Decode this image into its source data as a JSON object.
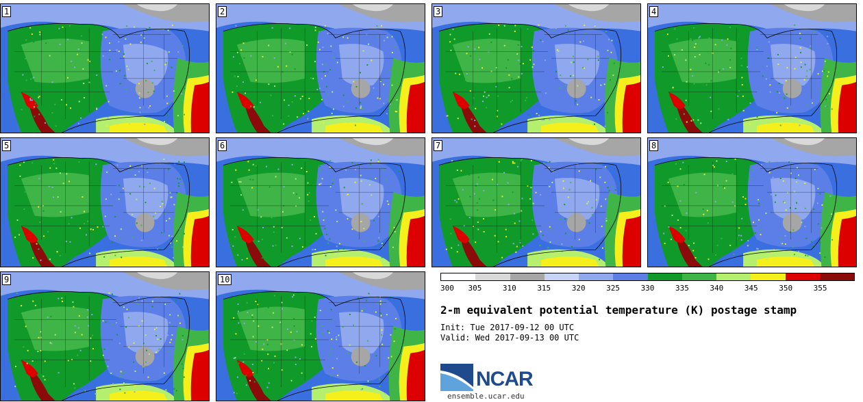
{
  "panels": [
    {
      "label": "1"
    },
    {
      "label": "2"
    },
    {
      "label": "3"
    },
    {
      "label": "4"
    },
    {
      "label": "5"
    },
    {
      "label": "6"
    },
    {
      "label": "7"
    },
    {
      "label": "8"
    },
    {
      "label": "9"
    },
    {
      "label": "10"
    }
  ],
  "colorbar": {
    "ticks": [
      "300",
      "305",
      "310",
      "315",
      "320",
      "325",
      "330",
      "335",
      "340",
      "345",
      "350",
      "355"
    ],
    "colors": [
      "#ffffff",
      "#d9d9d9",
      "#a6a6a6",
      "#c7d4f5",
      "#8fa8ee",
      "#5b7fe6",
      "#0f9a2a",
      "#3fb447",
      "#b4ef6e",
      "#f5ef1c",
      "#dd0000",
      "#8b0a0a"
    ]
  },
  "title": "2-m equivalent potential temperature (K) postage stamp",
  "init": "Init: Tue 2017-09-12 00 UTC",
  "valid": "Valid: Wed 2017-09-13 00 UTC",
  "logo_text": "NCAR",
  "website": "ensemble.ucar.edu"
}
